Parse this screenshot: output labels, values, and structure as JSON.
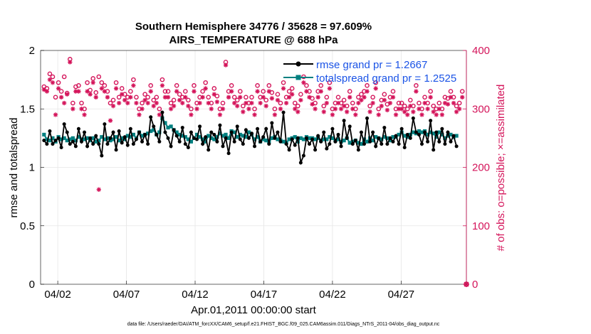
{
  "chart_data": {
    "type": "line",
    "title_line1": "Southern Hemisphere 34776 / 35628 = 97.609%",
    "title_line2": "AIRS_TEMPERATURE @ 688 hPa",
    "xlabel": "Apr.01,2011 00:00:00 start",
    "ylabel_left": "rmse and totalspread",
    "ylabel_right": "# of obs: o=possible; ×=assimilated",
    "xlim": [
      0,
      31
    ],
    "ylim_left": [
      0,
      2
    ],
    "ylim_right": [
      0,
      400
    ],
    "x_ticks": [
      {
        "value": 1.25,
        "label": "04/02"
      },
      {
        "value": 6.25,
        "label": "04/07"
      },
      {
        "value": 11.25,
        "label": "04/12"
      },
      {
        "value": 16.25,
        "label": "04/17"
      },
      {
        "value": 21.25,
        "label": "04/22"
      },
      {
        "value": 26.25,
        "label": "04/27"
      }
    ],
    "y_ticks_left": [
      "0",
      "0.5",
      "1",
      "1.5",
      "2"
    ],
    "y_ticks_right": [
      "0",
      "100",
      "200",
      "300",
      "400"
    ],
    "legend": [
      {
        "label": "rmse grand pr = 1.2667",
        "color": "#000000"
      },
      {
        "label": "totalspread grand pr = 1.2525",
        "color": "#008080"
      }
    ],
    "series_colors": {
      "rmse": "#000000",
      "totalspread": "#008080",
      "obs": "#d4145a"
    },
    "rmse": [
      1.23,
      1.2,
      1.31,
      1.2,
      1.23,
      1.25,
      1.17,
      1.37,
      1.3,
      1.2,
      1.22,
      1.18,
      1.33,
      1.22,
      1.3,
      1.18,
      1.25,
      1.2,
      1.27,
      1.2,
      1.1,
      1.37,
      1.2,
      1.25,
      1.3,
      1.15,
      1.31,
      1.21,
      1.26,
      1.19,
      1.33,
      1.2,
      1.24,
      1.3,
      1.22,
      1.28,
      1.2,
      1.43,
      1.35,
      1.28,
      1.22,
      1.47,
      1.3,
      1.25,
      1.18,
      1.32,
      1.27,
      1.22,
      1.34,
      1.2,
      1.17,
      1.3,
      1.25,
      1.24,
      1.35,
      1.2,
      1.26,
      1.15,
      1.3,
      1.28,
      1.22,
      1.36,
      1.18,
      1.25,
      1.12,
      1.3,
      1.22,
      1.35,
      1.24,
      1.2,
      1.32,
      1.25,
      1.29,
      1.18,
      1.33,
      1.22,
      1.26,
      1.33,
      1.2,
      1.38,
      1.25,
      1.3,
      1.22,
      1.47,
      1.2,
      1.15,
      1.24,
      1.19,
      1.25,
      1.04,
      1.1,
      1.25,
      1.2,
      1.24,
      1.15,
      1.27,
      1.22,
      1.3,
      1.16,
      1.2,
      1.33,
      1.22,
      1.28,
      1.18,
      1.4,
      1.25,
      1.35,
      1.2,
      1.23,
      1.15,
      1.3,
      1.2,
      1.42,
      1.22,
      1.3,
      1.18,
      1.25,
      1.2,
      1.34,
      1.2,
      1.25,
      1.22,
      1.27,
      1.2,
      1.33,
      1.17,
      1.28,
      1.25,
      1.42,
      1.3,
      1.28,
      1.2,
      1.3,
      1.22,
      1.4,
      1.15,
      1.3,
      1.22,
      1.33,
      1.2,
      1.3,
      1.22,
      1.27,
      1.18
    ],
    "totalspread": [
      1.28,
      1.24,
      1.23,
      1.25,
      1.22,
      1.26,
      1.24,
      1.25,
      1.23,
      1.24,
      1.25,
      1.23,
      1.26,
      1.24,
      1.24,
      1.25,
      1.23,
      1.25,
      1.22,
      1.23,
      1.26,
      1.24,
      1.25,
      1.23,
      1.24,
      1.26,
      1.23,
      1.25,
      1.24,
      1.27,
      1.26,
      1.28,
      1.25,
      1.3,
      1.27,
      1.28,
      1.29,
      1.31,
      1.32,
      1.28,
      1.3,
      1.42,
      1.38,
      1.34,
      1.35,
      1.32,
      1.3,
      1.28,
      1.27,
      1.26,
      1.24,
      1.22,
      1.25,
      1.28,
      1.26,
      1.24,
      1.22,
      1.27,
      1.25,
      1.24,
      1.26,
      1.29,
      1.27,
      1.28,
      1.25,
      1.31,
      1.3,
      1.26,
      1.28,
      1.27,
      1.26,
      1.3,
      1.28,
      1.24,
      1.26,
      1.22,
      1.24,
      1.23,
      1.22,
      1.25,
      1.26,
      1.24,
      1.23,
      1.22,
      1.21,
      1.24,
      1.25,
      1.26,
      1.22,
      1.25,
      1.24,
      1.26,
      1.25,
      1.25,
      1.24,
      1.25,
      1.23,
      1.24,
      1.24,
      1.26,
      1.25,
      1.23,
      1.24,
      1.22,
      1.23,
      1.25,
      1.21,
      1.22,
      1.23,
      1.21,
      1.2,
      1.24,
      1.22,
      1.25,
      1.23,
      1.26,
      1.25,
      1.24,
      1.26,
      1.25,
      1.23,
      1.26,
      1.26,
      1.28,
      1.3,
      1.27,
      1.26,
      1.28,
      1.3,
      1.29,
      1.31,
      1.3,
      1.31,
      1.28,
      1.3,
      1.29,
      1.26,
      1.3,
      1.28,
      1.25,
      1.27,
      1.28,
      1.26,
      1.27
    ],
    "obs_possible": [
      338,
      335,
      360,
      355,
      320,
      345,
      330,
      355,
      327,
      385,
      310,
      338,
      340,
      310,
      300,
      345,
      332,
      352,
      328,
      355,
      345,
      340,
      330,
      310,
      315,
      345,
      320,
      335,
      325,
      320,
      330,
      350,
      320,
      300,
      310,
      325,
      320,
      340,
      315,
      320,
      300,
      350,
      330,
      330,
      310,
      315,
      340,
      325,
      320,
      330,
      315,
      300,
      340,
      310,
      320,
      330,
      345,
      320,
      310,
      335,
      322,
      300,
      310,
      380,
      330,
      340,
      320,
      315,
      330,
      305,
      320,
      310,
      320,
      300,
      340,
      320,
      330,
      315,
      340,
      328,
      300,
      325,
      310,
      345,
      320,
      330,
      335,
      310,
      305,
      325,
      355,
      340,
      330,
      318,
      310,
      330,
      340,
      305,
      320,
      345,
      300,
      310,
      320,
      310,
      315,
      305,
      330,
      310,
      300,
      320,
      325,
      330,
      340,
      305,
      320,
      345,
      300,
      315,
      325,
      308,
      320,
      330,
      300,
      310,
      310,
      305,
      300,
      315,
      305,
      340,
      310,
      300,
      320,
      310,
      330,
      305,
      300,
      310,
      300,
      320,
      318,
      330,
      320,
      305,
      310,
      330
    ],
    "obs_assimilated": [
      333,
      330,
      350,
      345,
      290,
      335,
      320,
      310,
      325,
      380,
      300,
      330,
      330,
      300,
      290,
      330,
      325,
      345,
      320,
      162,
      335,
      330,
      320,
      280,
      305,
      335,
      310,
      325,
      315,
      310,
      320,
      340,
      310,
      290,
      300,
      315,
      310,
      330,
      305,
      310,
      290,
      340,
      320,
      320,
      300,
      305,
      330,
      315,
      310,
      320,
      305,
      290,
      330,
      300,
      310,
      320,
      335,
      310,
      300,
      325,
      312,
      290,
      300,
      375,
      320,
      330,
      310,
      305,
      320,
      295,
      310,
      300,
      310,
      290,
      330,
      310,
      320,
      305,
      330,
      318,
      290,
      315,
      300,
      335,
      310,
      320,
      325,
      300,
      295,
      315,
      345,
      330,
      320,
      308,
      300,
      320,
      330,
      295,
      310,
      335,
      290,
      300,
      310,
      300,
      305,
      295,
      320,
      300,
      290,
      310,
      315,
      320,
      330,
      295,
      310,
      335,
      290,
      305,
      315,
      298,
      310,
      320,
      290,
      300,
      300,
      295,
      290,
      305,
      295,
      330,
      300,
      290,
      310,
      300,
      320,
      295,
      290,
      300,
      290,
      310,
      308,
      320,
      310,
      295,
      300,
      320
    ]
  },
  "footer": "data file: /Users/raeder/DAI/ATM_forcXX/CAM6_setup/f.e21.FHIST_BGC.f09_025.CAM6assim.011/Diags_NTrS_2011-04/obs_diag_output.nc"
}
